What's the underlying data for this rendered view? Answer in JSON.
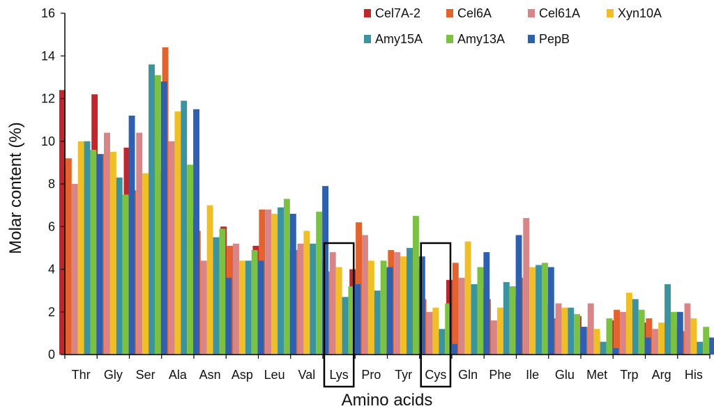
{
  "chart_data": {
    "type": "bar",
    "title": "",
    "xlabel": "Amino acids",
    "ylabel": "Molar content (%)",
    "ylim": [
      0,
      16
    ],
    "yticks": [
      "0",
      "2",
      "4",
      "6",
      "8",
      "10",
      "12",
      "14",
      "16"
    ],
    "grid": false,
    "legend_position": "top-right",
    "categories": [
      "Thr",
      "Gly",
      "Ser",
      "Ala",
      "Asn",
      "Asp",
      "Leu",
      "Val",
      "Lys",
      "Pro",
      "Tyr",
      "Cys",
      "Gln",
      "Phe",
      "Ile",
      "Glu",
      "Met",
      "Trp",
      "Arg",
      "His"
    ],
    "highlighted_categories": [
      "Lys",
      "Cys"
    ],
    "series": [
      {
        "name": "Cel7A-2",
        "color": "#C0272D",
        "values": [
          12.4,
          12.2,
          9.7,
          8.6,
          6.4,
          6.0,
          5.1,
          4.9,
          4.4,
          4.0,
          4.0,
          4.0,
          3.5,
          3.1,
          2.7,
          2.4,
          1.8,
          1.6,
          1.5,
          1.3
        ]
      },
      {
        "name": "Cel6A",
        "color": "#E4622B",
        "values": [
          9.2,
          9.4,
          7.7,
          14.4,
          5.8,
          5.1,
          6.8,
          4.9,
          3.9,
          6.2,
          4.9,
          2.6,
          4.3,
          2.6,
          3.6,
          1.7,
          1.3,
          2.1,
          1.7,
          1.1
        ]
      },
      {
        "name": "Cel61A",
        "color": "#D98487",
        "values": [
          8.0,
          10.4,
          10.4,
          10.0,
          4.4,
          5.2,
          6.8,
          5.2,
          4.8,
          5.6,
          4.8,
          2.0,
          3.6,
          1.6,
          6.4,
          2.4,
          2.4,
          2.0,
          1.2,
          2.4
        ]
      },
      {
        "name": "Xyn10A",
        "color": "#F0BF25",
        "values": [
          10.0,
          9.5,
          8.5,
          11.4,
          7.0,
          4.4,
          6.6,
          5.8,
          4.1,
          4.4,
          4.6,
          2.2,
          5.3,
          2.2,
          4.1,
          2.2,
          1.2,
          2.9,
          1.5,
          1.7
        ]
      },
      {
        "name": "Amy15A",
        "color": "#3A939E",
        "values": [
          10.0,
          8.3,
          13.6,
          11.9,
          5.5,
          4.4,
          6.9,
          5.2,
          2.7,
          3.0,
          5.0,
          1.2,
          3.3,
          3.4,
          4.2,
          2.2,
          0.6,
          2.6,
          3.3,
          0.6
        ]
      },
      {
        "name": "Amy13A",
        "color": "#7CC242",
        "values": [
          9.6,
          7.5,
          13.1,
          8.9,
          5.9,
          4.9,
          7.3,
          6.7,
          3.2,
          4.4,
          6.5,
          2.4,
          4.1,
          3.2,
          4.3,
          1.9,
          1.7,
          2.1,
          2.0,
          1.3
        ]
      },
      {
        "name": "PepB",
        "color": "#2F60B0",
        "values": [
          9.4,
          11.2,
          12.8,
          11.5,
          3.6,
          4.4,
          6.6,
          7.9,
          3.3,
          4.1,
          4.6,
          0.5,
          4.8,
          5.6,
          4.1,
          1.3,
          0.3,
          0.8,
          2.0,
          0.8
        ]
      }
    ]
  }
}
